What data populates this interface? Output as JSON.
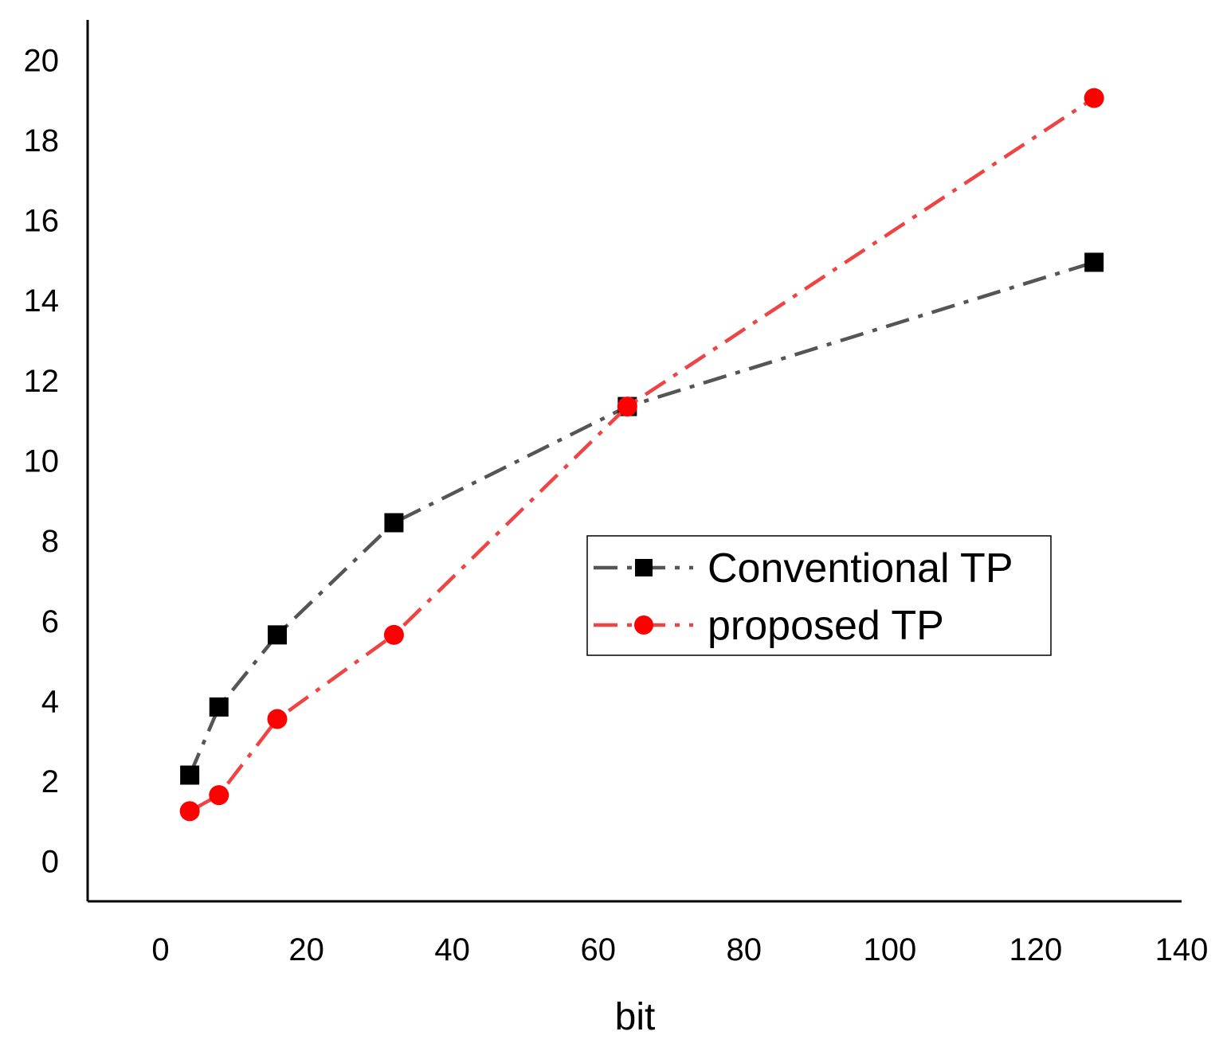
{
  "chart_data": {
    "type": "line",
    "title": "",
    "xlabel": "bit",
    "ylabel": "",
    "xlim": [
      -10,
      140
    ],
    "ylim": [
      -1,
      21
    ],
    "x_ticks": [
      0,
      20,
      40,
      60,
      80,
      100,
      120,
      140
    ],
    "y_ticks": [
      0,
      2,
      4,
      6,
      8,
      10,
      12,
      14,
      16,
      18,
      20
    ],
    "grid": false,
    "legend_position": "center-right",
    "series": [
      {
        "name": "Conventional TP",
        "color": "#555555",
        "marker_color": "#000000",
        "marker": "square",
        "line_style": "dash-dot",
        "x": [
          4,
          8,
          16,
          32,
          64,
          128
        ],
        "y": [
          2.15,
          3.85,
          5.65,
          8.45,
          11.35,
          14.95
        ]
      },
      {
        "name": "proposed TP",
        "color": "#ee4444",
        "marker_color": "#ff0000",
        "marker": "circle",
        "line_style": "dash-dot",
        "x": [
          4,
          8,
          16,
          32,
          64,
          128
        ],
        "y": [
          1.25,
          1.65,
          3.55,
          5.65,
          11.35,
          19.05
        ]
      }
    ]
  }
}
